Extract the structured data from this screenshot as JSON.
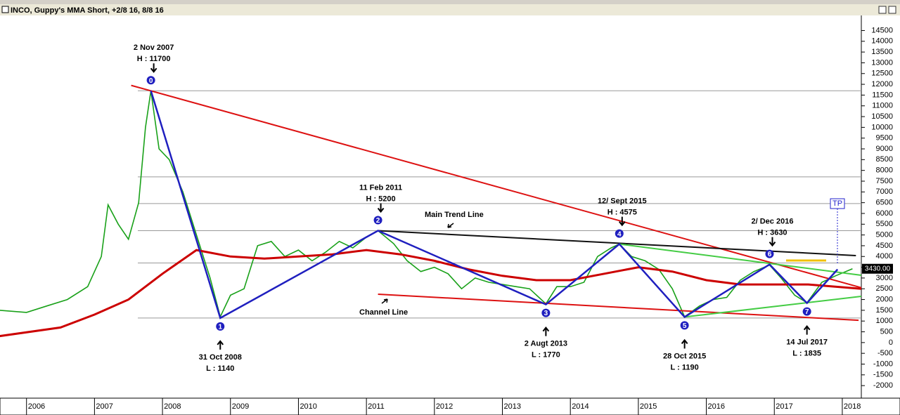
{
  "chart_data": {
    "type": "line",
    "title": "INCO, Guppy's MMA Short, +2/8 16, 8/8 16",
    "xlim": [
      2005.61,
      2018.28
    ],
    "ylim": [
      -2550,
      15200
    ],
    "xticks": [
      2006,
      2007,
      2008,
      2009,
      2010,
      2011,
      2012,
      2013,
      2014,
      2015,
      2016,
      2017,
      2018
    ],
    "yticks": [
      -2000,
      -1500,
      -1000,
      -500,
      0,
      500,
      1000,
      1500,
      2000,
      2500,
      3000,
      3500,
      4000,
      4500,
      5000,
      5500,
      6000,
      6500,
      7000,
      7500,
      8000,
      8500,
      9000,
      9500,
      10000,
      10500,
      11000,
      11500,
      12000,
      12500,
      13000,
      13500,
      14000,
      14500
    ],
    "series": [
      {
        "color": "#19a119",
        "x": [
          2005.6,
          2006.0,
          2006.3,
          2006.6,
          2006.9,
          2007.1,
          2007.2,
          2007.35,
          2007.5,
          2007.65,
          2007.75,
          2007.83,
          2007.95,
          2008.1,
          2008.3,
          2008.5,
          2008.7,
          2008.85,
          2009.0,
          2009.2,
          2009.4,
          2009.6,
          2009.8,
          2010.0,
          2010.2,
          2010.4,
          2010.6,
          2010.8,
          2011.0,
          2011.17,
          2011.4,
          2011.6,
          2011.8,
          2012.0,
          2012.2,
          2012.4,
          2012.6,
          2012.8,
          2013.0,
          2013.2,
          2013.4,
          2013.64,
          2013.8,
          2014.0,
          2014.2,
          2014.4,
          2014.6,
          2014.72,
          2014.9,
          2015.1,
          2015.3,
          2015.5,
          2015.68,
          2015.9,
          2016.1,
          2016.3,
          2016.5,
          2016.7,
          2016.93,
          2017.1,
          2017.3,
          2017.48,
          2017.7,
          2017.9,
          2018.15
        ],
        "values": [
          1500,
          1400,
          1700,
          2000,
          2600,
          4000,
          6400,
          5500,
          4800,
          6500,
          10000,
          11700,
          9000,
          8500,
          7000,
          5000,
          3000,
          1200,
          2200,
          2500,
          4500,
          4700,
          4000,
          4300,
          3800,
          4200,
          4700,
          4400,
          4900,
          5200,
          4600,
          3800,
          3300,
          3500,
          3200,
          2500,
          3000,
          2800,
          2700,
          2600,
          2500,
          1800,
          2600,
          2600,
          2800,
          4000,
          4400,
          4575,
          4000,
          3800,
          3400,
          2500,
          1200,
          1700,
          2000,
          2100,
          2900,
          3300,
          3600,
          3000,
          2200,
          1850,
          2800,
          3100,
          3430
        ],
        "last_label": "3430.00"
      },
      {
        "color": "#cc0000",
        "x": [
          2005.6,
          2006.5,
          2007.0,
          2007.5,
          2008.0,
          2008.5,
          2009.0,
          2009.5,
          2010.0,
          2010.5,
          2011.0,
          2011.5,
          2012.0,
          2012.5,
          2013.0,
          2013.5,
          2014.0,
          2014.5,
          2015.0,
          2015.5,
          2016.0,
          2016.5,
          2017.0,
          2017.5,
          2018.28
        ],
        "values": [
          300,
          700,
          1300,
          2000,
          3200,
          4300,
          4000,
          3900,
          4000,
          4100,
          4300,
          4100,
          3800,
          3400,
          3100,
          2900,
          2900,
          3200,
          3500,
          3300,
          2900,
          2700,
          2700,
          2700,
          2500
        ]
      }
    ],
    "waves": {
      "color": "#1f1fbf",
      "x": [
        2007.83,
        2008.85,
        2011.17,
        2013.64,
        2014.72,
        2015.68,
        2016.93,
        2017.48,
        2017.93
      ],
      "values": [
        11700,
        1140,
        5200,
        1770,
        4575,
        1190,
        3630,
        1835,
        3400
      ],
      "labels": [
        "0",
        "1",
        "2",
        "3",
        "4",
        "5",
        "6",
        "7",
        null
      ],
      "notes": [
        [
          "2 Nov 2007",
          "H : 11700"
        ],
        [
          "31 Oct 2008",
          "L : 1140"
        ],
        [
          "11 Feb 2011",
          "H : 5200"
        ],
        [
          "2 Augt 2013",
          "L : 1770"
        ],
        [
          "12/ Sept 2015",
          "H : 4575"
        ],
        [
          "28 Oct 2015",
          "L : 1190"
        ],
        [
          "2/ Dec 2016",
          "H : 3630"
        ],
        [
          "14 Jul 2017",
          "L : 1835"
        ]
      ]
    },
    "trend_lines": [
      {
        "color": "#dd1111",
        "x": [
          2007.54,
          2018.28
        ],
        "values": [
          11950,
          2550
        ]
      },
      {
        "color": "#111111",
        "x": [
          2011.17,
          2018.2
        ],
        "values": [
          5200,
          4040
        ]
      },
      {
        "color": "#dd1111",
        "x": [
          2011.17,
          2018.24
        ],
        "values": [
          2245,
          1036
        ]
      },
      {
        "color": "#44cc44",
        "x": [
          2014.72,
          2018.28
        ],
        "values": [
          4575,
          3127
        ]
      },
      {
        "color": "#44cc44",
        "x": [
          2015.68,
          2018.28
        ],
        "values": [
          1190,
          2147
        ]
      }
    ],
    "hlines": {
      "color": "#999999",
      "values": [
        11700,
        7700,
        6460,
        5200,
        3700,
        1140
      ]
    },
    "annotations": [
      "Main Trend Line",
      "Channel Line",
      "TP"
    ]
  }
}
